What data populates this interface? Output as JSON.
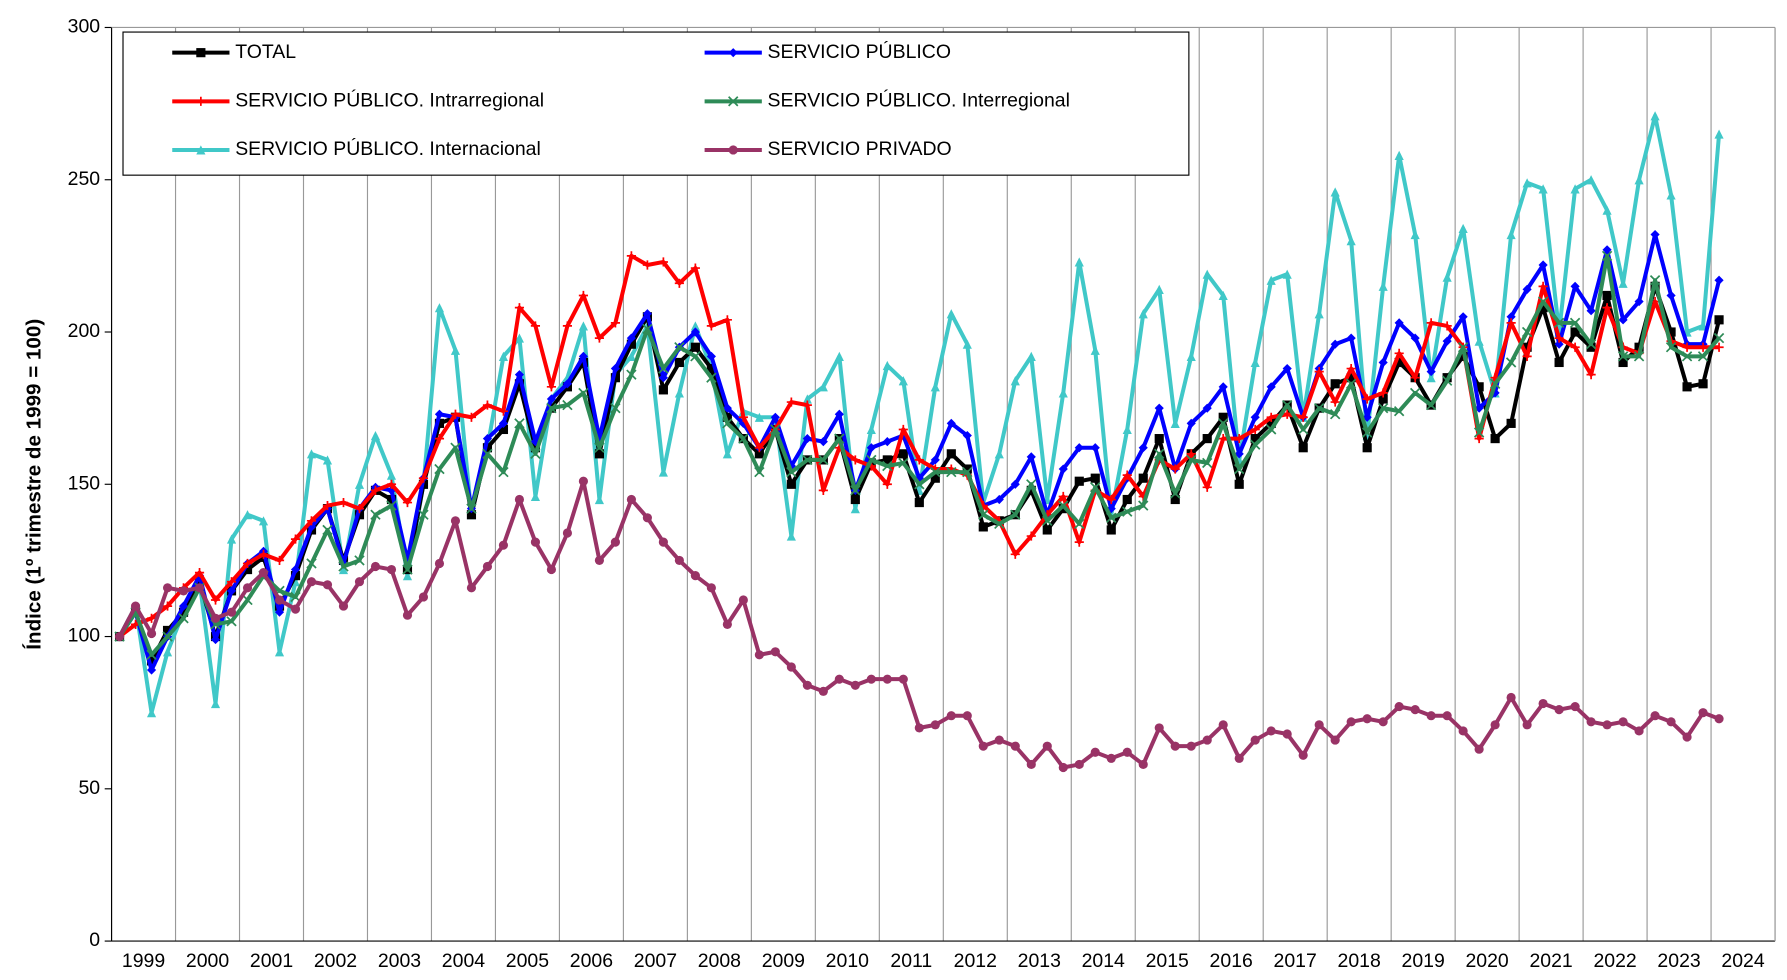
{
  "chart_data": {
    "type": "line",
    "y_label": "Índice (1º trimestre de 1999 = 100)",
    "categories": [
      "1999",
      null,
      null,
      null,
      "2000",
      null,
      null,
      null,
      "2001",
      null,
      null,
      null,
      "2002",
      null,
      null,
      null,
      "2003",
      null,
      null,
      null,
      "2004",
      null,
      null,
      null,
      "2005",
      null,
      null,
      null,
      "2006",
      null,
      null,
      null,
      "2007",
      null,
      null,
      null,
      "2008",
      null,
      null,
      null,
      "2009",
      null,
      null,
      null,
      "2010",
      null,
      null,
      null,
      "2011",
      null,
      null,
      null,
      "2012",
      null,
      null,
      null,
      "2013",
      null,
      null,
      null,
      "2014",
      null,
      null,
      null,
      "2015",
      null,
      null,
      null,
      "2016",
      null,
      null,
      null,
      "2017",
      null,
      null,
      null,
      "2018",
      null,
      null,
      null,
      "2019",
      null,
      null,
      null,
      "2020",
      null,
      null,
      null,
      "2021",
      null,
      null,
      null,
      "2022",
      null,
      null,
      null,
      "2023",
      null,
      null,
      null,
      "2024"
    ],
    "ylim": [
      0,
      300
    ],
    "yticks": [
      0,
      50,
      100,
      150,
      200,
      250,
      300
    ],
    "grid": true,
    "series": [
      {
        "name": "TOTAL",
        "color": "#000000",
        "marker": "square",
        "values": [
          100,
          108,
          92,
          102,
          108,
          118,
          100,
          115,
          122,
          126,
          110,
          120,
          135,
          142,
          125,
          140,
          148,
          145,
          122,
          150,
          170,
          172,
          140,
          162,
          168,
          183,
          162,
          175,
          182,
          190,
          160,
          185,
          196,
          205,
          181,
          190,
          195,
          188,
          172,
          165,
          160,
          168,
          150,
          158,
          158,
          165,
          145,
          157,
          158,
          160,
          144,
          152,
          160,
          155,
          136,
          138,
          140,
          148,
          135,
          142,
          151,
          152,
          135,
          145,
          152,
          165,
          145,
          160,
          165,
          172,
          150,
          165,
          170,
          176,
          162,
          175,
          183,
          185,
          162,
          178,
          190,
          185,
          176,
          185,
          192,
          182,
          165,
          170,
          195,
          208,
          190,
          200,
          195,
          212,
          190,
          195,
          215,
          200,
          182,
          183,
          204
        ]
      },
      {
        "name": "SERVICIO PÚBLICO",
        "color": "#0000ff",
        "marker": "diamond",
        "values": [
          100,
          108,
          89,
          100,
          110,
          120,
          99,
          115,
          124,
          128,
          108,
          122,
          136,
          142,
          124,
          142,
          149,
          148,
          125,
          152,
          173,
          172,
          142,
          165,
          170,
          186,
          164,
          178,
          183,
          192,
          165,
          188,
          198,
          206,
          185,
          195,
          200,
          192,
          175,
          170,
          162,
          172,
          156,
          165,
          164,
          173,
          148,
          162,
          164,
          166,
          152,
          158,
          170,
          166,
          143,
          145,
          150,
          159,
          140,
          155,
          162,
          162,
          142,
          152,
          162,
          175,
          155,
          170,
          175,
          182,
          160,
          172,
          182,
          188,
          172,
          188,
          196,
          198,
          172,
          190,
          203,
          198,
          187,
          197,
          205,
          175,
          180,
          205,
          214,
          222,
          196,
          215,
          207,
          227,
          204,
          210,
          232,
          212,
          196,
          196,
          217
        ]
      },
      {
        "name": "SERVICIO PÚBLICO. Intrarregional",
        "color": "#ff0000",
        "marker": "plus",
        "values": [
          100,
          104,
          106,
          110,
          116,
          121,
          112,
          118,
          124,
          127,
          125,
          132,
          138,
          143,
          144,
          142,
          148,
          150,
          144,
          152,
          165,
          173,
          172,
          176,
          174,
          208,
          202,
          182,
          202,
          212,
          198,
          203,
          225,
          222,
          223,
          216,
          221,
          202,
          204,
          172,
          162,
          168,
          177,
          176,
          148,
          162,
          158,
          156,
          150,
          168,
          158,
          155,
          155,
          153,
          143,
          138,
          127,
          133,
          140,
          146,
          131,
          148,
          145,
          153,
          146,
          158,
          155,
          160,
          149,
          165,
          165,
          168,
          172,
          173,
          172,
          187,
          177,
          188,
          178,
          180,
          193,
          185,
          203,
          202,
          195,
          165,
          185,
          203,
          192,
          215,
          198,
          195,
          186,
          208,
          195,
          193,
          210,
          197,
          195,
          195,
          195
        ]
      },
      {
        "name": "SERVICIO PÚBLICO. Interregional",
        "color": "#2e8b57",
        "marker": "x",
        "values": [
          100,
          108,
          94,
          100,
          106,
          116,
          104,
          105,
          112,
          120,
          115,
          113,
          124,
          135,
          123,
          125,
          140,
          143,
          122,
          140,
          155,
          162,
          142,
          160,
          154,
          170,
          160,
          175,
          176,
          180,
          162,
          175,
          186,
          201,
          188,
          195,
          192,
          185,
          170,
          165,
          154,
          168,
          154,
          158,
          158,
          165,
          148,
          158,
          156,
          157,
          150,
          154,
          154,
          154,
          140,
          137,
          140,
          150,
          138,
          143,
          137,
          149,
          139,
          141,
          143,
          160,
          147,
          158,
          157,
          170,
          155,
          163,
          168,
          176,
          168,
          175,
          173,
          183,
          167,
          175,
          174,
          180,
          176,
          184,
          195,
          167,
          183,
          190,
          200,
          210,
          203,
          203,
          196,
          225,
          192,
          192,
          217,
          195,
          192,
          192,
          198
        ]
      },
      {
        "name": "SERVICIO PÚBLICO. Internacional",
        "color": "#40c8c8",
        "marker": "triangle",
        "values": [
          100,
          110,
          75,
          95,
          108,
          118,
          78,
          132,
          140,
          138,
          95,
          118,
          160,
          158,
          122,
          150,
          166,
          153,
          120,
          150,
          208,
          194,
          140,
          162,
          192,
          198,
          146,
          178,
          185,
          202,
          145,
          186,
          192,
          202,
          154,
          180,
          202,
          188,
          160,
          174,
          172,
          172,
          133,
          178,
          182,
          192,
          142,
          168,
          189,
          184,
          148,
          182,
          206,
          196,
          144,
          160,
          184,
          192,
          145,
          180,
          223,
          194,
          140,
          168,
          206,
          214,
          170,
          192,
          219,
          212,
          158,
          190,
          217,
          219,
          172,
          206,
          246,
          230,
          166,
          215,
          258,
          232,
          185,
          218,
          234,
          197,
          180,
          232,
          249,
          247,
          200,
          247,
          250,
          240,
          216,
          250,
          271,
          245,
          200,
          202,
          265
        ]
      },
      {
        "name": "SERVICIO PRIVADO",
        "color": "#993366",
        "marker": "circle",
        "values": [
          100,
          110,
          101,
          116,
          115,
          116,
          106,
          108,
          116,
          121,
          112,
          109,
          118,
          117,
          110,
          118,
          123,
          122,
          107,
          113,
          124,
          138,
          116,
          123,
          130,
          145,
          131,
          122,
          134,
          151,
          125,
          131,
          145,
          139,
          131,
          125,
          120,
          116,
          104,
          112,
          94,
          95,
          90,
          84,
          82,
          86,
          84,
          86,
          86,
          86,
          70,
          71,
          74,
          74,
          64,
          66,
          64,
          58,
          64,
          57,
          58,
          62,
          60,
          62,
          58,
          70,
          64,
          64,
          66,
          71,
          60,
          66,
          69,
          68,
          61,
          71,
          66,
          72,
          73,
          72,
          77,
          76,
          74,
          74,
          69,
          63,
          71,
          80,
          71,
          78,
          76,
          77,
          72,
          71,
          72,
          69,
          74,
          72,
          67,
          75,
          73
        ]
      }
    ]
  }
}
